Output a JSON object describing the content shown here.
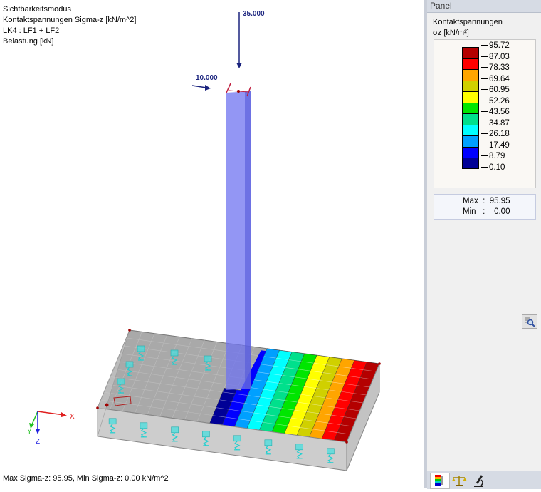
{
  "viewport": {
    "info_lines": [
      "Sichtbarkeitsmodus",
      "Kontaktspannungen Sigma-z [kN/m^2]",
      "LK4 : LF1 + LF2",
      "Belastung [kN]"
    ],
    "loads": {
      "vertical": "35.000",
      "horizontal": "10.000"
    },
    "axes": {
      "x": "X",
      "y": "Y",
      "z": "Z"
    },
    "status": "Max Sigma-z: 95.95, Min Sigma-z: 0.00 kN/m^2"
  },
  "panel": {
    "header": "Panel",
    "title": "Kontaktspannungen",
    "unit": "σz [kN/m²]",
    "legend_values": [
      "95.72",
      "87.03",
      "78.33",
      "69.64",
      "60.95",
      "52.26",
      "43.56",
      "34.87",
      "26.18",
      "17.49",
      "8.79",
      "0.10"
    ],
    "legend_colors": [
      "#b40000",
      "#ff0000",
      "#ffa500",
      "#d0d000",
      "#ffff00",
      "#00e600",
      "#00e08c",
      "#00ffff",
      "#00a0ff",
      "#0000ff",
      "#000096"
    ],
    "max_label": "Max",
    "max_value": "95.95",
    "min_label": "Min",
    "min_value": "0.00",
    "tabs": [
      "color-scale-icon",
      "balance-icon",
      "microscope-icon"
    ]
  }
}
